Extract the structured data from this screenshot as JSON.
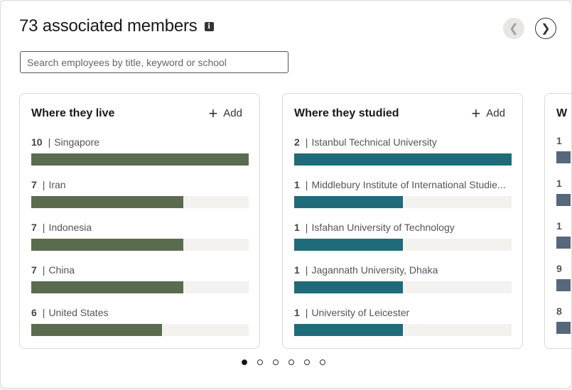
{
  "header": {
    "title": "73 associated members",
    "info_icon": "info-icon"
  },
  "nav": {
    "prev_glyph": "❮",
    "next_glyph": "❯"
  },
  "search": {
    "placeholder": "Search employees by title, keyword or school",
    "value": ""
  },
  "cards": [
    {
      "title": "Where they live",
      "add_label": "Add",
      "color": "#5b6b4f",
      "items": [
        {
          "count": "10",
          "label": "Singapore",
          "fraction": 1.0
        },
        {
          "count": "7",
          "label": "Iran",
          "fraction": 0.7
        },
        {
          "count": "7",
          "label": "Indonesia",
          "fraction": 0.7
        },
        {
          "count": "7",
          "label": "China",
          "fraction": 0.7
        },
        {
          "count": "6",
          "label": "United States",
          "fraction": 0.6
        }
      ]
    },
    {
      "title": "Where they studied",
      "add_label": "Add",
      "color": "#1f6b7a",
      "items": [
        {
          "count": "2",
          "label": "Istanbul Technical University",
          "fraction": 1.0
        },
        {
          "count": "1",
          "label": "Middlebury Institute of International Studie...",
          "fraction": 0.5
        },
        {
          "count": "1",
          "label": "Isfahan University of Technology",
          "fraction": 0.5
        },
        {
          "count": "1",
          "label": "Jagannath University, Dhaka",
          "fraction": 0.5
        },
        {
          "count": "1",
          "label": "University of Leicester",
          "fraction": 0.5
        }
      ]
    }
  ],
  "peek_card": {
    "title_fragment": "W",
    "counts": [
      "1",
      "1",
      "1",
      "9",
      "8"
    ],
    "color": "#56687a"
  },
  "pagination": {
    "total": 6,
    "active": 0
  }
}
